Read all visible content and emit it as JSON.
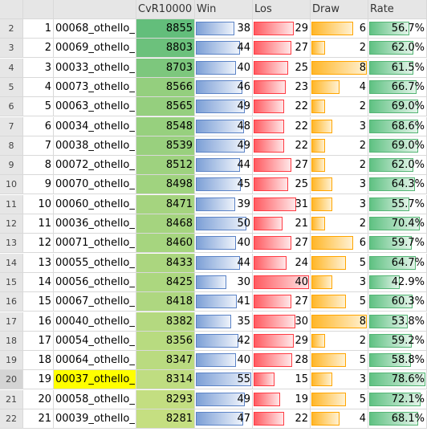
{
  "headers": {
    "c1": "",
    "c2": "",
    "cvr": "CvR10000",
    "win": "Win",
    "los": "Los",
    "draw": "Draw",
    "rate": "Rate"
  },
  "rows": [
    {
      "r": "2",
      "n": "1",
      "name": "00068_othello_",
      "cvr": "8855",
      "win": "38",
      "los": "29",
      "draw": "6",
      "rate": "56.7%",
      "rf": 0.567
    },
    {
      "r": "3",
      "n": "2",
      "name": "00069_othello_",
      "cvr": "8803",
      "win": "44",
      "los": "27",
      "draw": "2",
      "rate": "62.0%",
      "rf": 0.62
    },
    {
      "r": "4",
      "n": "3",
      "name": "00033_othello_",
      "cvr": "8703",
      "win": "40",
      "los": "25",
      "draw": "8",
      "rate": "61.5%",
      "rf": 0.615
    },
    {
      "r": "5",
      "n": "4",
      "name": "00073_othello_",
      "cvr": "8566",
      "win": "46",
      "los": "23",
      "draw": "4",
      "rate": "66.7%",
      "rf": 0.667
    },
    {
      "r": "6",
      "n": "5",
      "name": "00063_othello_",
      "cvr": "8565",
      "win": "49",
      "los": "22",
      "draw": "2",
      "rate": "69.0%",
      "rf": 0.69
    },
    {
      "r": "7",
      "n": "6",
      "name": "00034_othello_",
      "cvr": "8548",
      "win": "48",
      "los": "22",
      "draw": "3",
      "rate": "68.6%",
      "rf": 0.686
    },
    {
      "r": "8",
      "n": "7",
      "name": "00038_othello_",
      "cvr": "8539",
      "win": "49",
      "los": "22",
      "draw": "2",
      "rate": "69.0%",
      "rf": 0.69
    },
    {
      "r": "9",
      "n": "8",
      "name": "00072_othello_",
      "cvr": "8512",
      "win": "44",
      "los": "27",
      "draw": "2",
      "rate": "62.0%",
      "rf": 0.62
    },
    {
      "r": "10",
      "n": "9",
      "name": "00070_othello_",
      "cvr": "8498",
      "win": "45",
      "los": "25",
      "draw": "3",
      "rate": "64.3%",
      "rf": 0.643
    },
    {
      "r": "11",
      "n": "10",
      "name": "00060_othello_",
      "cvr": "8471",
      "win": "39",
      "los": "31",
      "draw": "3",
      "rate": "55.7%",
      "rf": 0.557
    },
    {
      "r": "12",
      "n": "11",
      "name": "00036_othello_",
      "cvr": "8468",
      "win": "50",
      "los": "21",
      "draw": "2",
      "rate": "70.4%",
      "rf": 0.704
    },
    {
      "r": "13",
      "n": "12",
      "name": "00071_othello_",
      "cvr": "8460",
      "win": "40",
      "los": "27",
      "draw": "6",
      "rate": "59.7%",
      "rf": 0.597
    },
    {
      "r": "14",
      "n": "13",
      "name": "00055_othello_",
      "cvr": "8433",
      "win": "44",
      "los": "24",
      "draw": "5",
      "rate": "64.7%",
      "rf": 0.647
    },
    {
      "r": "15",
      "n": "14",
      "name": "00056_othello_",
      "cvr": "8425",
      "win": "30",
      "los": "40",
      "draw": "3",
      "rate": "42.9%",
      "rf": 0.429
    },
    {
      "r": "16",
      "n": "15",
      "name": "00067_othello_",
      "cvr": "8418",
      "win": "41",
      "los": "27",
      "draw": "5",
      "rate": "60.3%",
      "rf": 0.603
    },
    {
      "r": "17",
      "n": "16",
      "name": "00040_othello_",
      "cvr": "8382",
      "win": "35",
      "los": "30",
      "draw": "8",
      "rate": "53.8%",
      "rf": 0.538
    },
    {
      "r": "18",
      "n": "17",
      "name": "00054_othello_",
      "cvr": "8356",
      "win": "42",
      "los": "29",
      "draw": "2",
      "rate": "59.2%",
      "rf": 0.592
    },
    {
      "r": "19",
      "n": "18",
      "name": "00064_othello_",
      "cvr": "8347",
      "win": "40",
      "los": "28",
      "draw": "5",
      "rate": "58.8%",
      "rf": 0.588
    },
    {
      "r": "20",
      "n": "19",
      "name": "00037_othello_",
      "cvr": "8314",
      "win": "55",
      "los": "15",
      "draw": "3",
      "rate": "78.6%",
      "rf": 0.786,
      "highlight": true
    },
    {
      "r": "21",
      "n": "20",
      "name": "00058_othello_",
      "cvr": "8293",
      "win": "49",
      "los": "19",
      "draw": "5",
      "rate": "72.1%",
      "rf": 0.721
    },
    {
      "r": "22",
      "n": "21",
      "name": "00039_othello_",
      "cvr": "8281",
      "win": "47",
      "los": "22",
      "draw": "4",
      "rate": "68.1%",
      "rf": 0.681
    }
  ],
  "colors": {
    "cvr_high": "#63be7b",
    "cvr_low": "#c5df81",
    "highlight": "#ffff00"
  }
}
